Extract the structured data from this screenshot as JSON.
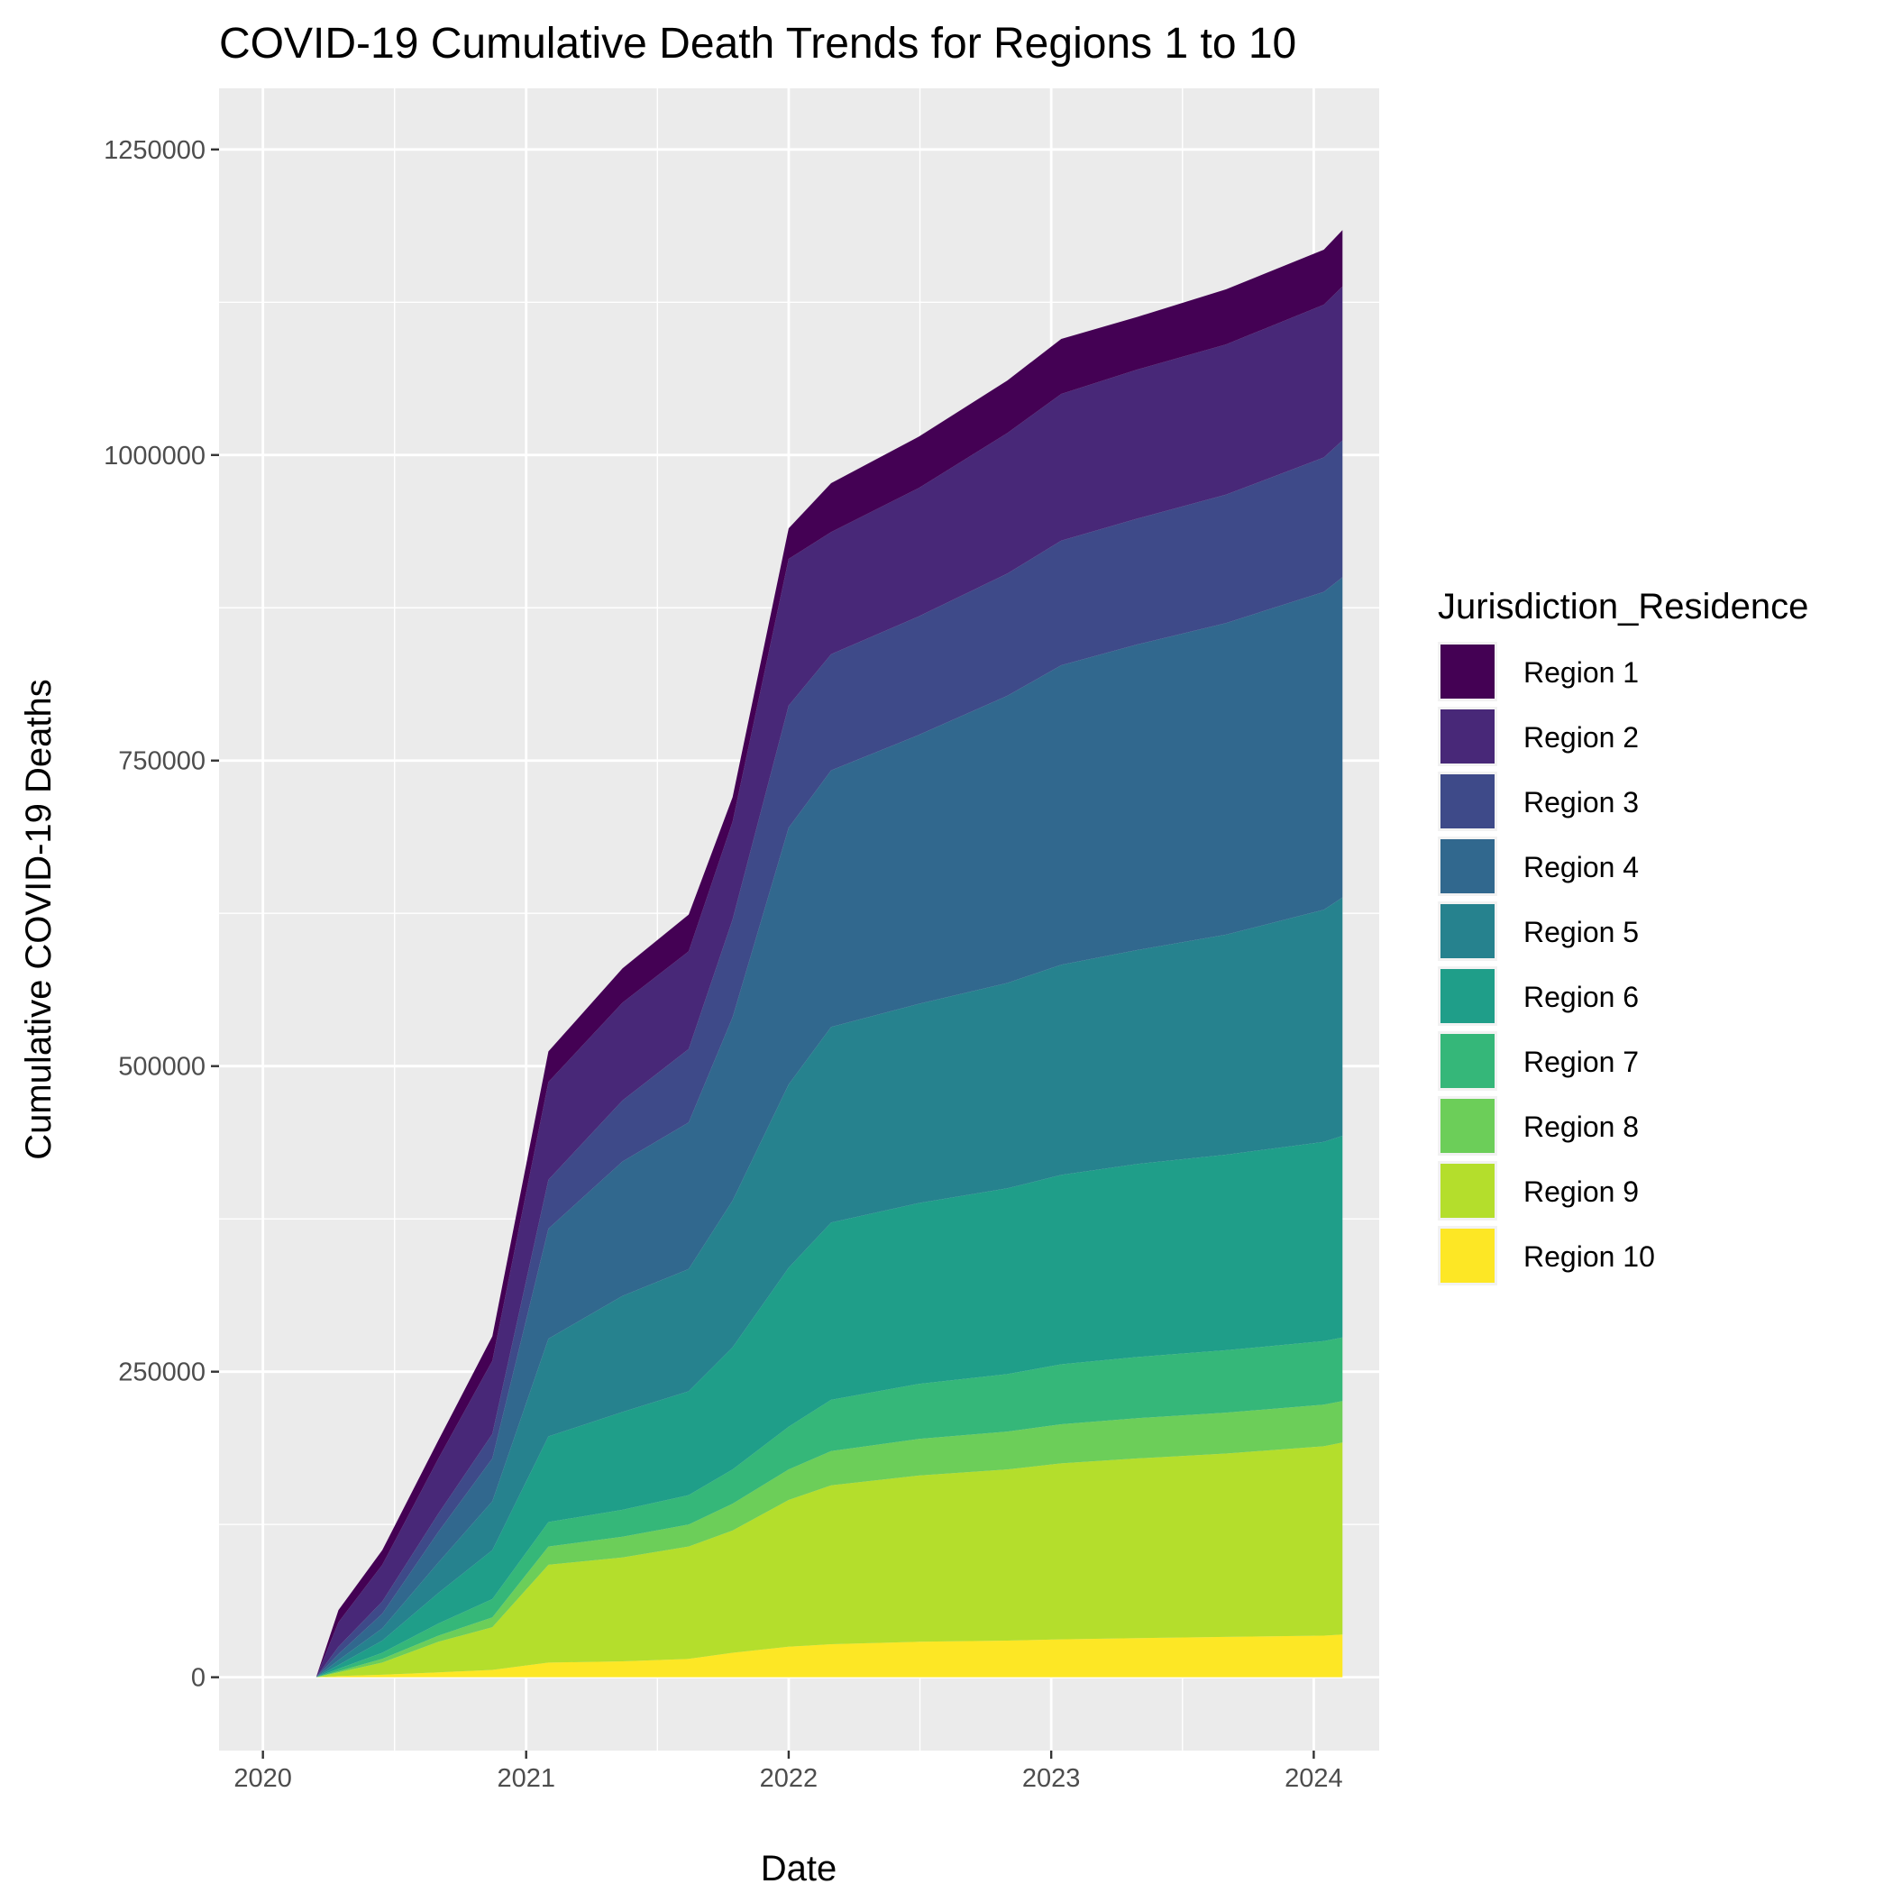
{
  "chart_data": {
    "type": "area",
    "stacked": true,
    "title": "COVID-19 Cumulative Death Trends for Regions 1 to 10",
    "xlabel": "Date",
    "ylabel": "Cumulative COVID-19 Deaths",
    "x_ticks": [
      "2020",
      "2021",
      "2022",
      "2023",
      "2024"
    ],
    "y_ticks": [
      "0",
      "250000",
      "500000",
      "750000",
      "1000000",
      "1250000"
    ],
    "xlim": [
      "2019-11-01",
      "2024-04-01"
    ],
    "ylim": [
      -60000,
      1300000
    ],
    "grid": true,
    "legend": {
      "title": "Jurisdiction_Residence",
      "position": "right"
    },
    "x": [
      "2020-03-15",
      "2020-04-15",
      "2020-06-15",
      "2020-09-01",
      "2020-11-15",
      "2021-02-01",
      "2021-05-15",
      "2021-08-15",
      "2021-10-15",
      "2022-01-01",
      "2022-03-01",
      "2022-07-01",
      "2022-11-01",
      "2023-01-15",
      "2023-05-01",
      "2023-09-01",
      "2024-01-15",
      "2024-02-10"
    ],
    "series": [
      {
        "name": "Region 10",
        "color": "#FDE725",
        "values": [
          0,
          1000,
          2000,
          4000,
          6000,
          12000,
          13000,
          15000,
          20000,
          25000,
          27000,
          29000,
          30000,
          31000,
          32000,
          33000,
          34000,
          35000
        ]
      },
      {
        "name": "Region 9",
        "color": "#B4DE2C",
        "values": [
          0,
          3000,
          10000,
          25000,
          35000,
          80000,
          85000,
          92000,
          100000,
          120000,
          130000,
          136000,
          140000,
          144000,
          147000,
          150000,
          155000,
          157000
        ]
      },
      {
        "name": "Region 8",
        "color": "#6CCE59",
        "values": [
          0,
          1000,
          3000,
          5000,
          8000,
          15000,
          17000,
          18000,
          22000,
          25000,
          28000,
          30000,
          31000,
          32000,
          33000,
          33500,
          34000,
          34000
        ]
      },
      {
        "name": "Region 7",
        "color": "#35B779",
        "values": [
          0,
          2000,
          5000,
          10000,
          15000,
          20000,
          22000,
          24000,
          28000,
          35000,
          42000,
          45000,
          47000,
          49000,
          50000,
          51000,
          52000,
          52000
        ]
      },
      {
        "name": "Region 6",
        "color": "#1F9E89",
        "values": [
          0,
          3000,
          10000,
          25000,
          40000,
          70000,
          80000,
          85000,
          100000,
          130000,
          145000,
          148000,
          152000,
          155000,
          158000,
          160000,
          163000,
          165000
        ]
      },
      {
        "name": "Region 5",
        "color": "#26828E",
        "values": [
          0,
          4000,
          10000,
          25000,
          40000,
          80000,
          95000,
          100000,
          120000,
          150000,
          160000,
          163000,
          168000,
          172000,
          175000,
          180000,
          190000,
          195000
        ]
      },
      {
        "name": "Region 4",
        "color": "#31688E",
        "values": [
          0,
          5000,
          12000,
          25000,
          35000,
          90000,
          110000,
          120000,
          150000,
          210000,
          210000,
          220000,
          235000,
          245000,
          250000,
          255000,
          260000,
          262000
        ]
      },
      {
        "name": "Region 3",
        "color": "#3E4A89",
        "values": [
          0,
          6000,
          10000,
          15000,
          20000,
          40000,
          50000,
          60000,
          80000,
          100000,
          95000,
          97000,
          100000,
          102000,
          103000,
          105000,
          110000,
          112000
        ]
      },
      {
        "name": "Region 2",
        "color": "#482878",
        "values": [
          0,
          20000,
          30000,
          45000,
          60000,
          80000,
          80000,
          80000,
          80000,
          120000,
          100000,
          105000,
          115000,
          120000,
          122000,
          123000,
          125000,
          126000
        ]
      },
      {
        "name": "Region 1",
        "color": "#440154",
        "values": [
          0,
          10000,
          12000,
          15000,
          20000,
          25000,
          28000,
          30000,
          20000,
          25000,
          40000,
          42000,
          43000,
          45000,
          43000,
          45000,
          45000,
          46000
        ]
      }
    ]
  },
  "colors": {
    "panel_background": "#EBEBEB",
    "gridline": "#FFFFFF",
    "tick_text": "#4D4D4D",
    "tick_mark": "#333333"
  }
}
